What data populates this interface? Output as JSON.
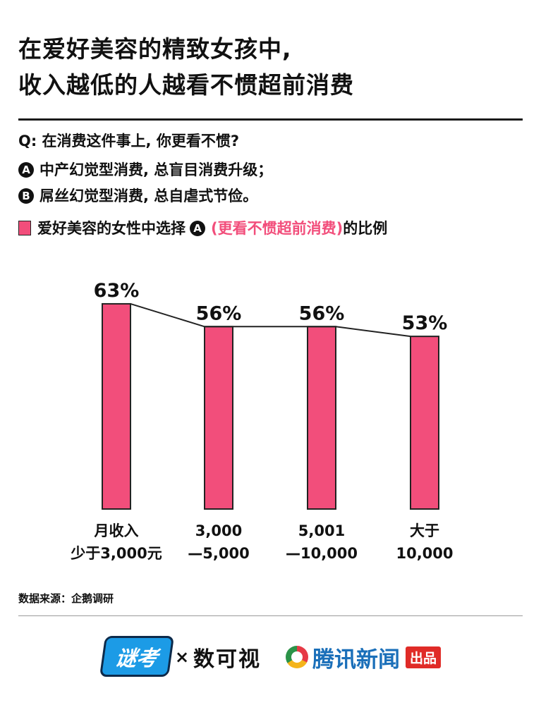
{
  "title": {
    "line1": "在爱好美容的精致女孩中,",
    "line2": "收入越低的人越看不惯超前消费"
  },
  "question": {
    "text": "Q: 在消费这件事上, 你更看不惯?",
    "option_a_badge": "A",
    "option_a": "中产幻觉型消费, 总盲目消费升级；",
    "option_b_badge": "B",
    "option_b": "屌丝幻觉型消费, 总自虐式节俭。"
  },
  "legend": {
    "prefix": "爱好美容的女性中选择",
    "badge": "A",
    "highlight": "(更看不惯超前消费)",
    "suffix": "的比例"
  },
  "chart_data": {
    "type": "bar",
    "categories": [
      [
        "月收入",
        "少于3,000元"
      ],
      [
        "3,000",
        "—5,000"
      ],
      [
        "5,001",
        "—10,000"
      ],
      [
        "大于",
        "10,000"
      ]
    ],
    "values": [
      63,
      56,
      56,
      53
    ],
    "value_labels": [
      "63%",
      "56%",
      "56%",
      "53%"
    ],
    "overlay": "line connecting bar tops",
    "bar_color": "#f24e7b",
    "line_color": "#222222",
    "grid": false
  },
  "source": {
    "text": "数据来源：企鹅调研"
  },
  "footer": {
    "logo1": "谜考",
    "times": "×",
    "logo2": "数可视",
    "logo3": "腾讯新闻",
    "logo3_badge": "出品"
  }
}
